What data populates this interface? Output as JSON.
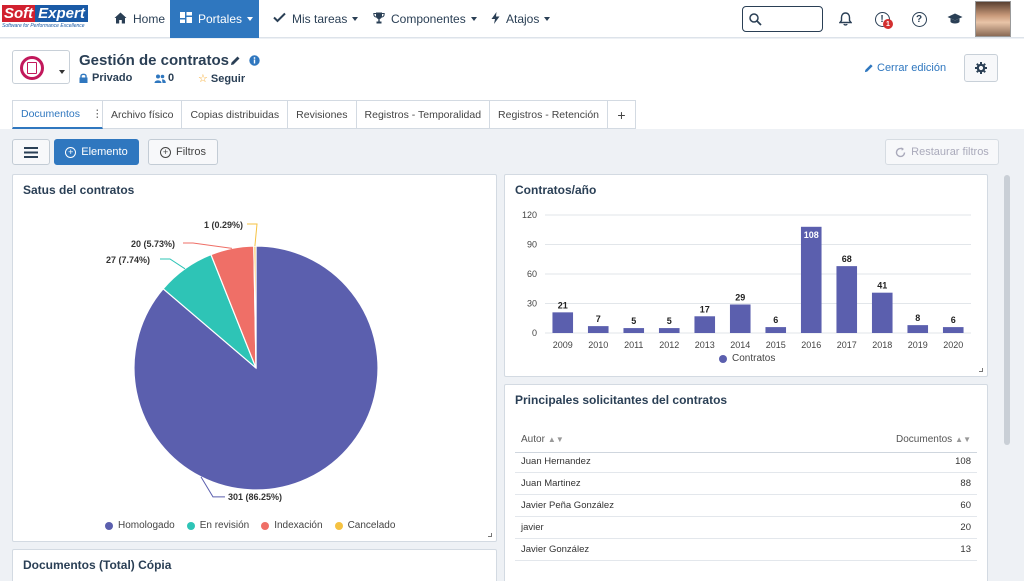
{
  "brand": {
    "name_part1": "Soft",
    "name_part2": "Expert",
    "tagline": "Software for Performance Excellence"
  },
  "nav": {
    "items": [
      {
        "label": "Home",
        "icon": "home-icon"
      },
      {
        "label": "Portales",
        "icon": "dashboard-icon",
        "active": true
      },
      {
        "label": "Mis tareas",
        "icon": "check-icon"
      },
      {
        "label": "Componentes",
        "icon": "trophy-icon"
      },
      {
        "label": "Atajos",
        "icon": "bolt-icon"
      }
    ],
    "notification_badge": "1"
  },
  "page": {
    "title": "Gestión de contratos",
    "privacy": "Privado",
    "followers": "0",
    "follow_label": "Seguir",
    "close_edit": "Cerrar edición"
  },
  "tabs": [
    "Documentos",
    "Archivo físico",
    "Copias distribuidas",
    "Revisiones",
    "Registros - Temporalidad",
    "Registros - Retención",
    "+"
  ],
  "toolbar": {
    "element": "Elemento",
    "filters": "Filtros",
    "restore": "Restaurar filtros"
  },
  "status_panel": {
    "title": "Satus del contratos",
    "chart_data": {
      "type": "pie",
      "title": "Satus del contratos",
      "slices": [
        {
          "label": "Homologado",
          "value": 301,
          "percent": 86.25,
          "color": "#5b5fae",
          "text": "301 (86.25%)"
        },
        {
          "label": "En revisión",
          "value": 27,
          "percent": 7.74,
          "color": "#2ec4b6",
          "text": "27 (7.74%)"
        },
        {
          "label": "Indexación",
          "value": 20,
          "percent": 5.73,
          "color": "#ef6f67",
          "text": "20 (5.73%)"
        },
        {
          "label": "Cancelado",
          "value": 1,
          "percent": 0.29,
          "color": "#f5c242",
          "text": "1 (0.29%)"
        }
      ]
    }
  },
  "year_panel": {
    "title": "Contratos/año",
    "chart_data": {
      "type": "bar",
      "title": "Contratos/año",
      "categories": [
        "2009",
        "2010",
        "2011",
        "2012",
        "2013",
        "2014",
        "2015",
        "2016",
        "2017",
        "2018",
        "2019",
        "2020"
      ],
      "series": [
        {
          "name": "Contratos",
          "values": [
            21,
            7,
            5,
            5,
            17,
            29,
            6,
            108,
            68,
            41,
            8,
            6
          ],
          "color": "#5b5fae"
        }
      ],
      "ylim": [
        0,
        120
      ],
      "yticks": [
        0,
        30,
        60,
        90,
        120
      ],
      "grid": true,
      "legend": "bottom"
    }
  },
  "requesters_panel": {
    "title": "Principales solicitantes del contratos",
    "columns": [
      "Autor",
      "Documentos"
    ],
    "rows": [
      [
        "Juan Hernandez",
        "108"
      ],
      [
        "Juan Martinez",
        "88"
      ],
      [
        "Javier Peña González",
        "60"
      ],
      [
        "javier",
        "20"
      ],
      [
        "Javier González",
        "13"
      ]
    ]
  },
  "bottom_panel": {
    "title": "Documentos (Total) Cópia"
  }
}
